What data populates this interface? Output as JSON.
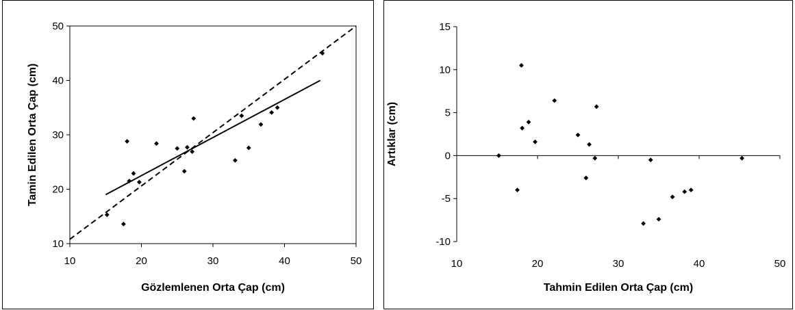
{
  "chart_data": [
    {
      "type": "scatter",
      "xlabel": "Gözlemlenen Orta Çap (cm)",
      "ylabel": "Tamin Edilen Orta Çap (cm)",
      "xlim": [
        10,
        50
      ],
      "ylim": [
        10,
        50
      ],
      "xticks": [
        10,
        20,
        30,
        40,
        50
      ],
      "yticks": [
        10,
        20,
        30,
        40,
        50
      ],
      "series": [
        {
          "values": [
            [
              15.2,
              15.3
            ],
            [
              17.5,
              13.6
            ],
            [
              18.0,
              28.8
            ],
            [
              18.3,
              21.5
            ],
            [
              18.9,
              22.9
            ],
            [
              19.7,
              21.3
            ],
            [
              22.1,
              28.4
            ],
            [
              25.0,
              27.5
            ],
            [
              26.0,
              23.3
            ],
            [
              26.4,
              27.7
            ],
            [
              27.1,
              26.9
            ],
            [
              27.3,
              33.0
            ],
            [
              33.1,
              25.3
            ],
            [
              34.0,
              33.5
            ],
            [
              35.0,
              27.6
            ],
            [
              36.7,
              31.9
            ],
            [
              38.2,
              34.1
            ],
            [
              39.0,
              35.0
            ],
            [
              45.3,
              45.0
            ]
          ]
        }
      ],
      "lines": [
        {
          "style": "solid",
          "x": [
            15,
            45
          ],
          "y": [
            19.0,
            40.0
          ]
        },
        {
          "style": "dashed",
          "x": [
            10,
            50
          ],
          "y": [
            10.8,
            50.0
          ]
        }
      ],
      "grid": false
    },
    {
      "type": "scatter",
      "xlabel": "Tahmin Edilen Orta Çap (cm)",
      "ylabel": "Artıklar (cm)",
      "xlim": [
        10,
        50
      ],
      "ylim": [
        -10,
        15
      ],
      "xticks": [
        10,
        20,
        30,
        40,
        50
      ],
      "yticks": [
        -10,
        -5,
        0,
        5,
        10,
        15
      ],
      "series": [
        {
          "values": [
            [
              15.2,
              0.0
            ],
            [
              17.5,
              -4.0
            ],
            [
              18.0,
              10.5
            ],
            [
              18.1,
              3.2
            ],
            [
              18.9,
              3.9
            ],
            [
              19.7,
              1.6
            ],
            [
              22.1,
              6.4
            ],
            [
              25.0,
              2.4
            ],
            [
              26.0,
              -2.6
            ],
            [
              26.4,
              1.3
            ],
            [
              27.1,
              -0.3
            ],
            [
              27.3,
              5.7
            ],
            [
              33.1,
              -7.9
            ],
            [
              34.0,
              -0.5
            ],
            [
              35.0,
              -7.4
            ],
            [
              36.7,
              -4.8
            ],
            [
              38.2,
              -4.2
            ],
            [
              39.0,
              -4.0
            ],
            [
              45.3,
              -0.3
            ]
          ]
        }
      ],
      "grid": false
    }
  ]
}
